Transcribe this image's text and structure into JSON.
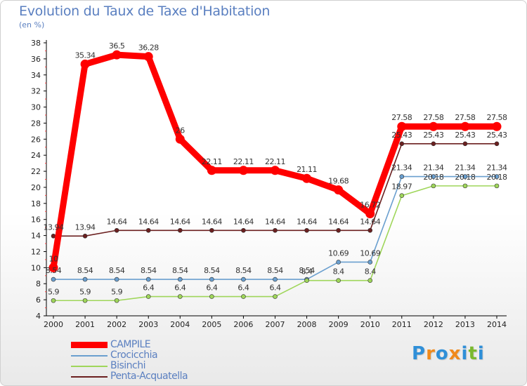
{
  "title": "Evolution du Taux de Taxe d'Habitation",
  "subtitle": "(en %)",
  "brand": {
    "text": "Proxiti",
    "letters": [
      "P",
      "r",
      "o",
      "x",
      "i",
      "t",
      "i"
    ],
    "colors": [
      "#2f8fd8",
      "#f08a1c",
      "#2f8fd8",
      "#f08a1c",
      "#2f8fd8",
      "#7ab92e",
      "#2f8fd8"
    ]
  },
  "chart_data": {
    "type": "line",
    "x": [
      2000,
      2001,
      2002,
      2003,
      2004,
      2005,
      2006,
      2007,
      2008,
      2009,
      2010,
      2011,
      2012,
      2013,
      2014
    ],
    "ylim": [
      4,
      38
    ],
    "yticks": [
      4,
      6,
      8,
      10,
      12,
      14,
      16,
      18,
      20,
      22,
      24,
      26,
      28,
      30,
      32,
      34,
      36,
      38
    ],
    "grid": false,
    "legend_position": "bottom-left",
    "series": [
      {
        "name": "Penta-Acquatella",
        "color": "#6b1f1f",
        "values": [
          13.94,
          13.94,
          14.64,
          14.64,
          14.64,
          14.64,
          14.64,
          14.64,
          14.64,
          14.64,
          14.64,
          25.43,
          25.43,
          25.43,
          25.43
        ],
        "labels": [
          "13.94",
          "13.94",
          "14.64",
          "14.64",
          "14.64",
          "14.64",
          "14.64",
          "14.64",
          "14.64",
          "14.64",
          "14.64",
          "25.43",
          "25.43",
          "25.43",
          "25.43"
        ]
      },
      {
        "name": "Crocicchia",
        "color": "#6a9fcf",
        "values": [
          8.54,
          8.54,
          8.54,
          8.54,
          8.54,
          8.54,
          8.54,
          8.54,
          8.54,
          10.69,
          10.69,
          21.34,
          21.34,
          21.34,
          21.34
        ],
        "labels": [
          "8.54",
          "8.54",
          "8.54",
          "8.54",
          "8.54",
          "8.54",
          "8.54",
          "8.54",
          "8.54",
          "10.69",
          "10.69",
          "21.34",
          "21.34",
          "21.34",
          "21.34"
        ]
      },
      {
        "name": "Bisinchi",
        "color": "#9fd65a",
        "values": [
          5.9,
          5.9,
          5.9,
          6.4,
          6.4,
          6.4,
          6.4,
          6.4,
          8.4,
          8.4,
          8.4,
          18.97,
          20.18,
          20.18,
          20.18
        ],
        "labels": [
          "5.9",
          "5.9",
          "5.9",
          "6.4",
          "6.4",
          "6.4",
          "6.4",
          "6.4",
          "8.4",
          "8.4",
          "8.4",
          "18.97",
          "20.18",
          "20.18",
          "20.18"
        ]
      },
      {
        "name": "CAMPILE",
        "color": "#ff0000",
        "values": [
          10,
          35.34,
          36.5,
          36.28,
          26,
          22.11,
          22.11,
          22.11,
          21.11,
          19.68,
          16.72,
          27.58,
          27.58,
          27.58,
          27.58
        ],
        "labels": [
          "10",
          "35.34",
          "36.5",
          "36.28",
          "26",
          "22.11",
          "22.11",
          "22.11",
          "21.11",
          "19.68",
          "16.72",
          "27.58",
          "27.58",
          "27.58",
          "27.58"
        ]
      }
    ],
    "legend_order": [
      "CAMPILE",
      "Crocicchia",
      "Bisinchi",
      "Penta-Acquatella"
    ]
  }
}
